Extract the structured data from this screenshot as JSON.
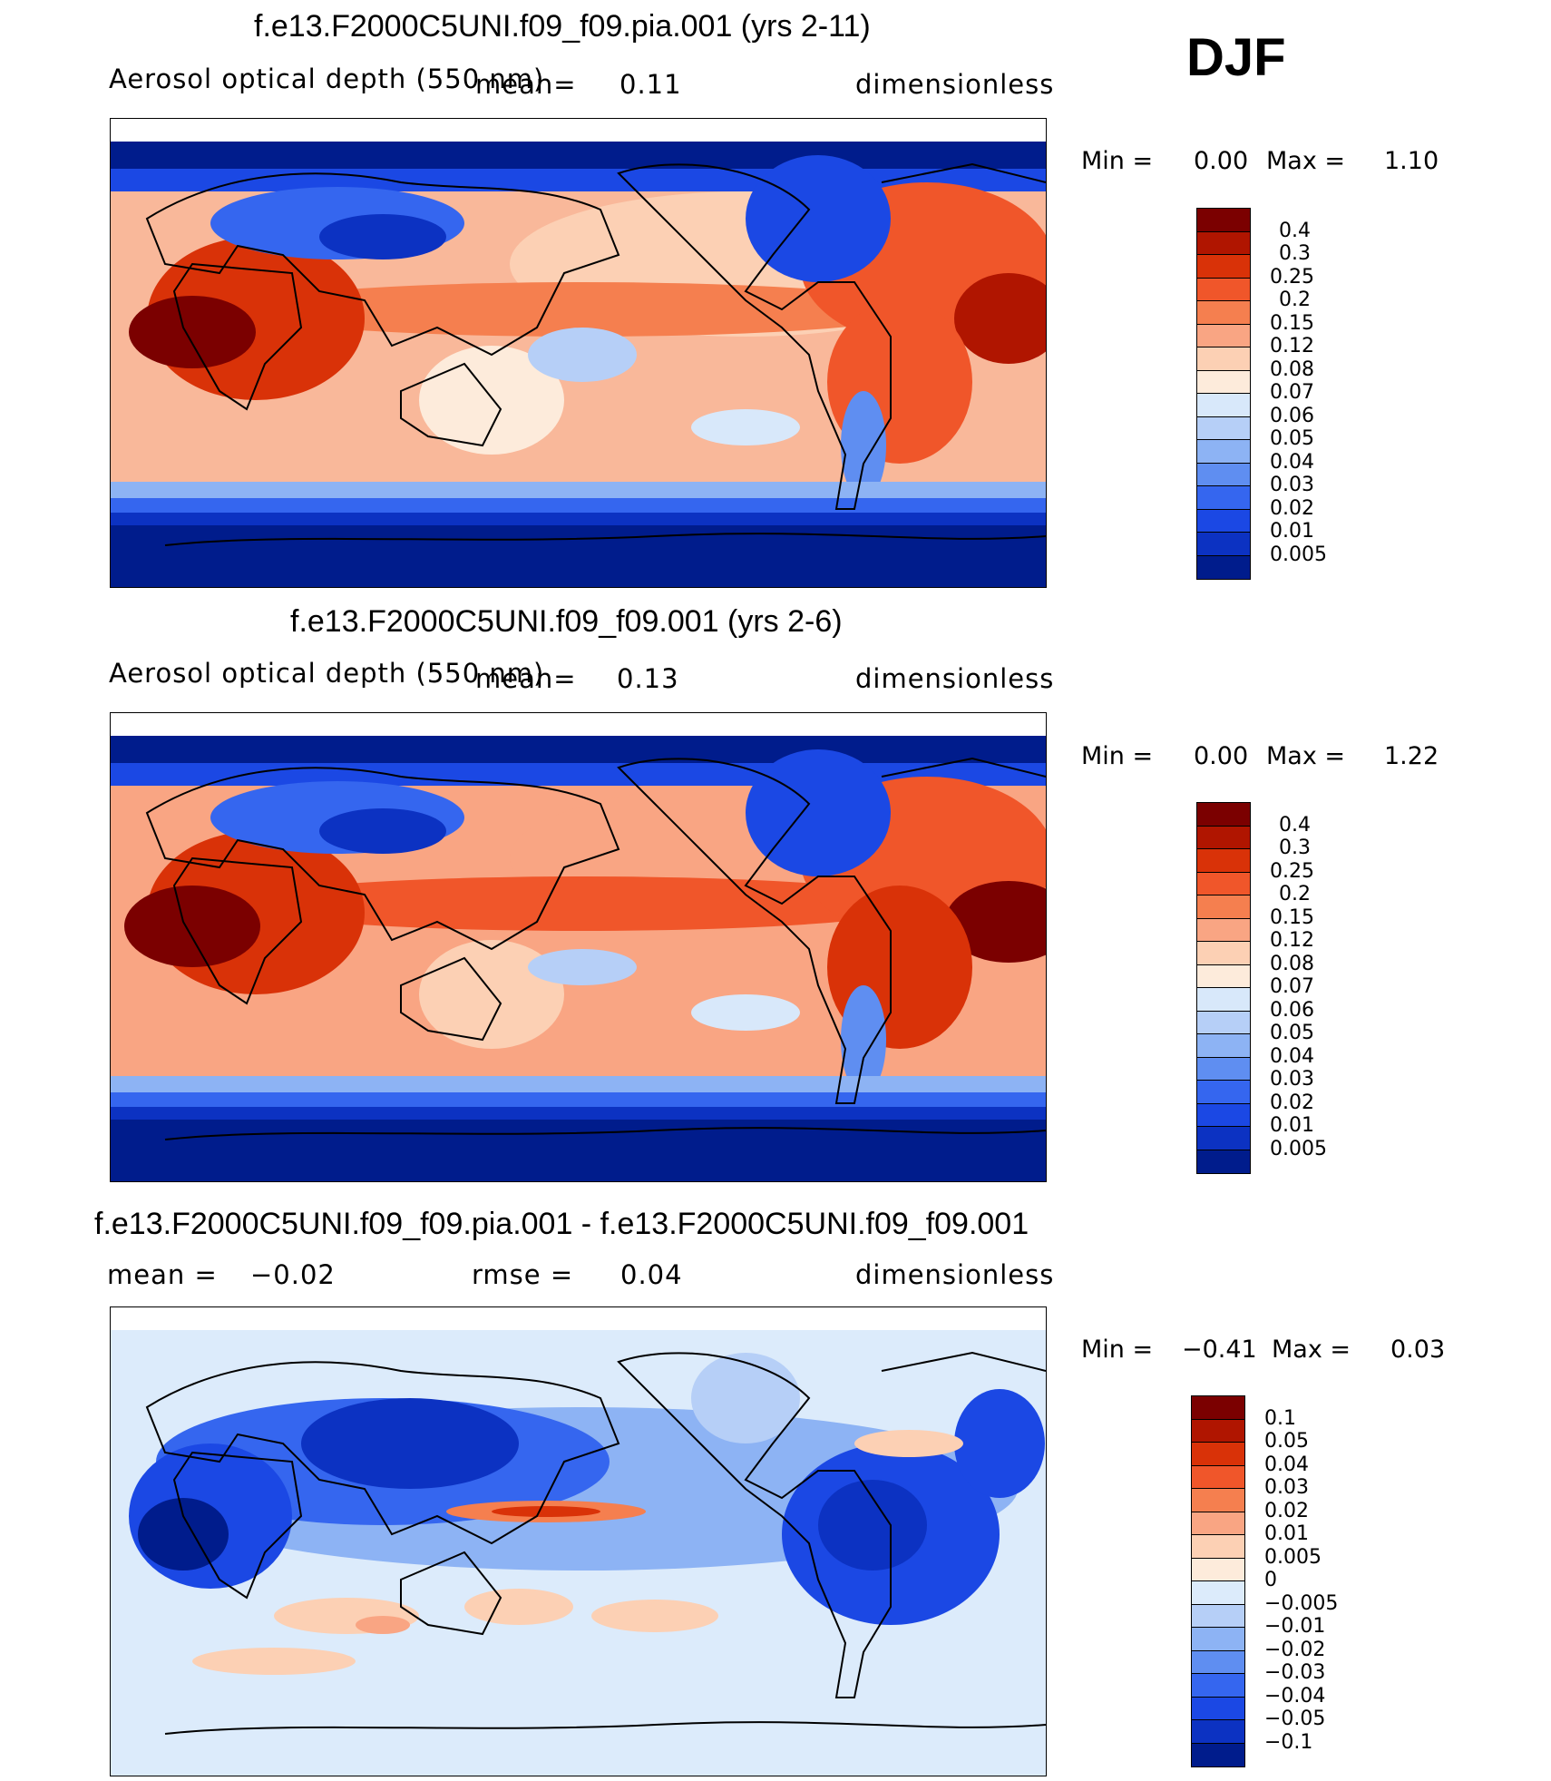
{
  "season": "DJF",
  "panels": [
    {
      "title": "f.e13.F2000C5UNI.f09_f09.pia.001 (yrs 2-11)",
      "variable": "Aerosol optical depth (550 nm)",
      "stat1_label": "mean=",
      "stat1_value": "0.11",
      "units": "dimensionless",
      "min_label": "Min =",
      "min_value": "0.00",
      "max_label": "Max =",
      "max_value": "1.10",
      "legend_colors": [
        "#7b0000",
        "#b01500",
        "#d93208",
        "#f0562a",
        "#f57f4f",
        "#f9a583",
        "#fcd0b4",
        "#fdebdb",
        "#d8e8fa",
        "#b6cff7",
        "#8db3f4",
        "#5f8ef1",
        "#3566ef",
        "#1b48e4",
        "#0c32c2",
        "#001c8c"
      ],
      "legend_labels": [
        "0.4",
        "0.3",
        "0.25",
        "0.2",
        "0.15",
        "0.12",
        "0.08",
        "0.07",
        "0.06",
        "0.05",
        "0.04",
        "0.03",
        "0.02",
        "0.01",
        "0.005"
      ],
      "diff": false
    },
    {
      "title": "f.e13.F2000C5UNI.f09_f09.001 (yrs 2-6)",
      "variable": "Aerosol optical depth (550 nm)",
      "stat1_label": "mean=",
      "stat1_value": "0.13",
      "units": "dimensionless",
      "min_label": "Min =",
      "min_value": "0.00",
      "max_label": "Max =",
      "max_value": "1.22",
      "legend_colors": [
        "#7b0000",
        "#b01500",
        "#d93208",
        "#f0562a",
        "#f57f4f",
        "#f9a583",
        "#fcd0b4",
        "#fdebdb",
        "#d8e8fa",
        "#b6cff7",
        "#8db3f4",
        "#5f8ef1",
        "#3566ef",
        "#1b48e4",
        "#0c32c2",
        "#001c8c"
      ],
      "legend_labels": [
        "0.4",
        "0.3",
        "0.25",
        "0.2",
        "0.15",
        "0.12",
        "0.08",
        "0.07",
        "0.06",
        "0.05",
        "0.04",
        "0.03",
        "0.02",
        "0.01",
        "0.005"
      ],
      "diff": false
    },
    {
      "title": "f.e13.F2000C5UNI.f09_f09.pia.001 - f.e13.F2000C5UNI.f09_f09.001",
      "stat1_label": "mean =",
      "stat1_value": "−0.02",
      "stat2_label": "rmse =",
      "stat2_value": "0.04",
      "units": "dimensionless",
      "min_label": "Min =",
      "min_value": "−0.41",
      "max_label": "Max =",
      "max_value": "0.03",
      "legend_colors": [
        "#7b0000",
        "#b01500",
        "#d93208",
        "#f0562a",
        "#f57f4f",
        "#f9a583",
        "#fcd0b4",
        "#fdebdb",
        "#dcebfb",
        "#b6cff7",
        "#8db3f4",
        "#5f8ef1",
        "#3566ef",
        "#1b48e4",
        "#0c32c2",
        "#001c8c"
      ],
      "legend_labels": [
        "0.1",
        "0.05",
        "0.04",
        "0.03",
        "0.02",
        "0.01",
        "0.005",
        "0",
        "−0.005",
        "−0.01",
        "−0.02",
        "−0.03",
        "−0.04",
        "−0.05",
        "−0.1"
      ],
      "diff": true
    }
  ]
}
